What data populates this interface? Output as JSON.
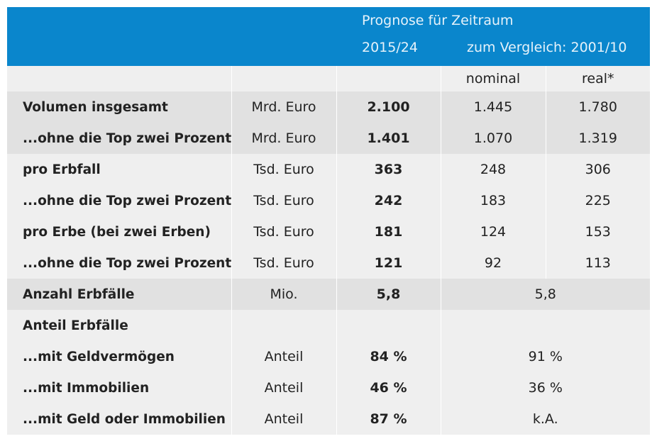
{
  "header": {
    "title": "Prognose für Zeitraum",
    "period": "2015/24",
    "compare": "zum Vergleich: 2001/10"
  },
  "subheader": {
    "nominal": "nominal",
    "real": "real*"
  },
  "rows_five": [
    {
      "label": "Volumen insgesamt",
      "unit": "Mrd. Euro",
      "forecast": "2.100",
      "nominal": "1.445",
      "real": "1.780",
      "shade": "dark"
    },
    {
      "label": "...ohne die Top zwei Prozent",
      "unit": "Mrd. Euro",
      "forecast": "1.401",
      "nominal": "1.070",
      "real": "1.319",
      "shade": "dark"
    },
    {
      "label": "pro Erbfall",
      "unit": "Tsd. Euro",
      "forecast": "363",
      "nominal": "248",
      "real": "306",
      "shade": "light"
    },
    {
      "label": "...ohne die Top zwei Prozent",
      "unit": "Tsd. Euro",
      "forecast": "242",
      "nominal": "183",
      "real": "225",
      "shade": "light"
    },
    {
      "label": "pro Erbe (bei zwei Erben)",
      "unit": "Tsd. Euro",
      "forecast": "181",
      "nominal": "124",
      "real": "153",
      "shade": "light"
    },
    {
      "label": "...ohne die Top zwei Prozent",
      "unit": "Tsd. Euro",
      "forecast": "121",
      "nominal": "92",
      "real": "113",
      "shade": "light"
    }
  ],
  "rows_merged": [
    {
      "label": "Anzahl Erbfälle",
      "unit": "Mio.",
      "forecast": "5,8",
      "compare": "5,8",
      "shade": "dark"
    },
    {
      "label": "Anteil Erbfälle",
      "unit": "",
      "forecast": "",
      "compare": "",
      "shade": "light"
    },
    {
      "label": "...mit Geldvermögen",
      "unit": "Anteil",
      "forecast": "84 %",
      "compare": "91 %",
      "shade": "light"
    },
    {
      "label": "...mit Immobilien",
      "unit": "Anteil",
      "forecast": "46 %",
      "compare": "36 %",
      "shade": "light"
    },
    {
      "label": "...mit Geld oder Immobilien",
      "unit": "Anteil",
      "forecast": "87 %",
      "compare": "k.A.",
      "shade": "light"
    }
  ]
}
